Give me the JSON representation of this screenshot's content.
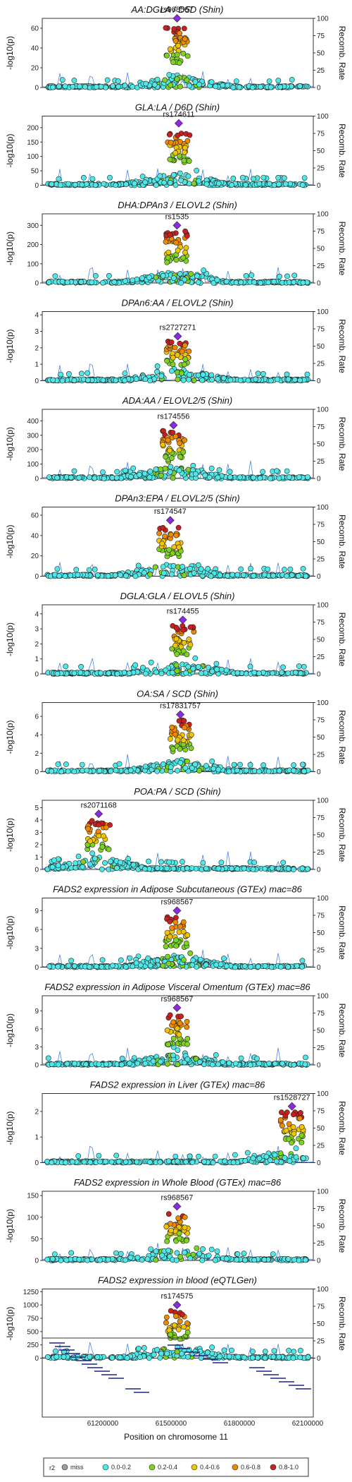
{
  "figure": {
    "xlabel": "Position on chromosome 11",
    "x_ticks": [
      "61200000",
      "61500000",
      "61800000",
      "62100000"
    ],
    "y_left_label": "-log10(p)",
    "y_right_label": "Recomb. Rate",
    "recomb_ticks": [
      "0",
      "25",
      "50",
      "75",
      "100"
    ]
  },
  "legend": {
    "title": "r2",
    "entries": [
      {
        "label": "miss",
        "color": "#9e9e9e"
      },
      {
        "label": "0.0-0.2",
        "color": "#4fe8e8"
      },
      {
        "label": "0.2-0.4",
        "color": "#7ed321"
      },
      {
        "label": "0.4-0.6",
        "color": "#f2c300"
      },
      {
        "label": "0.6-0.8",
        "color": "#ef8a00"
      },
      {
        "label": "0.8-1.0",
        "color": "#c8201e"
      }
    ]
  },
  "colors": {
    "lead": "#8a2be2",
    "recomb": "#4a86e8"
  },
  "chart_data": [
    {
      "type": "scatter",
      "title": "AA:DGLA / D5D (Shin)",
      "lead_snp": "rs968567",
      "lead_x": 61597000,
      "lead_y": 70,
      "y_ticks": [
        0,
        20,
        40,
        60
      ],
      "ylim": [
        0,
        70
      ],
      "y_label": "-log10(p)"
    },
    {
      "type": "scatter",
      "title": "GLA:LA / D6D (Shin)",
      "lead_snp": "rs174611",
      "lead_x": 61604000,
      "lead_y": 215,
      "y_ticks": [
        0,
        50,
        100,
        150,
        200
      ],
      "ylim": [
        0,
        240
      ],
      "y_label": "-log10(p)"
    },
    {
      "type": "scatter",
      "title": "DHA:DPAn3 / ELOVL2 (Shin)",
      "lead_snp": "rs1535",
      "lead_x": 61597000,
      "lead_y": 300,
      "y_ticks": [
        0,
        100,
        200,
        300
      ],
      "ylim": [
        0,
        360
      ],
      "y_label": "-log10(p)"
    },
    {
      "type": "scatter",
      "title": "DPAn6:AA / ELOVL2 (Shin)",
      "lead_snp": "rs2727271",
      "lead_x": 61600000,
      "lead_y": 2.7,
      "y_ticks": [
        0,
        1,
        2,
        3,
        4
      ],
      "ylim": [
        0,
        4.2
      ],
      "y_label": "-log10(p)"
    },
    {
      "type": "scatter",
      "title": "ADA:AA / ELOVL2/5 (Shin)",
      "lead_snp": "rs174556",
      "lead_x": 61583000,
      "lead_y": 370,
      "y_ticks": [
        0,
        100,
        200,
        300,
        400
      ],
      "ylim": [
        0,
        480
      ],
      "y_label": "-log10(p)"
    },
    {
      "type": "scatter",
      "title": "DPAn3:EPA / ELOVL2/5 (Shin)",
      "lead_snp": "rs174547",
      "lead_x": 61570000,
      "lead_y": 55,
      "y_ticks": [
        0,
        20,
        40,
        60
      ],
      "ylim": [
        0,
        68
      ],
      "y_label": "-log10(p)"
    },
    {
      "type": "scatter",
      "title": "DGLA:GLA / ELOVL5 (Shin)",
      "lead_snp": "rs174455",
      "lead_x": 61620000,
      "lead_y": 3.6,
      "y_ticks": [
        0,
        1,
        2,
        3,
        4
      ],
      "ylim": [
        0,
        4.6
      ],
      "y_label": "-log10(p)"
    },
    {
      "type": "scatter",
      "title": "OA:SA / SCD (Shin)",
      "lead_snp": "rs17831757",
      "lead_x": 61610000,
      "lead_y": 6.2,
      "y_ticks": [
        0,
        2,
        4,
        6
      ],
      "ylim": [
        0,
        7.5
      ],
      "y_label": "-log10(p)"
    },
    {
      "type": "scatter",
      "title": "POA:PA / SCD (Shin)",
      "lead_snp": "rs2071168",
      "lead_x": 61285000,
      "lead_y": 4.5,
      "y_ticks": [
        0,
        1,
        2,
        3,
        4,
        5
      ],
      "ylim": [
        0,
        5.6
      ],
      "y_label": "-log10(p)"
    },
    {
      "type": "scatter",
      "title": "FADS2 expression in Adipose Subcutaneous (GTEx) mac=86",
      "lead_snp": "rs968567",
      "lead_x": 61597000,
      "lead_y": 9,
      "y_ticks": [
        0,
        3,
        6,
        9
      ],
      "ylim": [
        0,
        11
      ],
      "y_label": "-log10(p)"
    },
    {
      "type": "scatter",
      "title": "FADS2 expression in Adipose Visceral Omentum (GTEx) mac=86",
      "lead_snp": "rs968567",
      "lead_x": 61597000,
      "lead_y": 9.5,
      "y_ticks": [
        0,
        3,
        6,
        9
      ],
      "ylim": [
        0,
        11.5
      ],
      "y_label": "-log10(p)"
    },
    {
      "type": "scatter",
      "title": "FADS2 expression in Liver (GTEx) mac=86",
      "lead_snp": "rs1528727",
      "lead_x": 62055000,
      "lead_y": 2.2,
      "y_ticks": [
        0,
        1,
        2
      ],
      "ylim": [
        0,
        2.7
      ],
      "y_label": "-log10(p)"
    },
    {
      "type": "scatter",
      "title": "FADS2 expression in Whole Blood (GTEx) mac=86",
      "lead_snp": "rs968567",
      "lead_x": 61597000,
      "lead_y": 125,
      "y_ticks": [
        0,
        50,
        100,
        150
      ],
      "ylim": [
        0,
        160
      ],
      "y_label": "-log10(p)"
    },
    {
      "type": "scatter",
      "title": "FADS2 expression in blood (eQTLGen)",
      "lead_snp": "rs174575",
      "lead_x": 61597000,
      "lead_y": 1000,
      "y_ticks": [
        0,
        250,
        500,
        750,
        1000,
        1250
      ],
      "ylim": [
        0,
        1300
      ],
      "y_label": "-log10(p)"
    }
  ]
}
